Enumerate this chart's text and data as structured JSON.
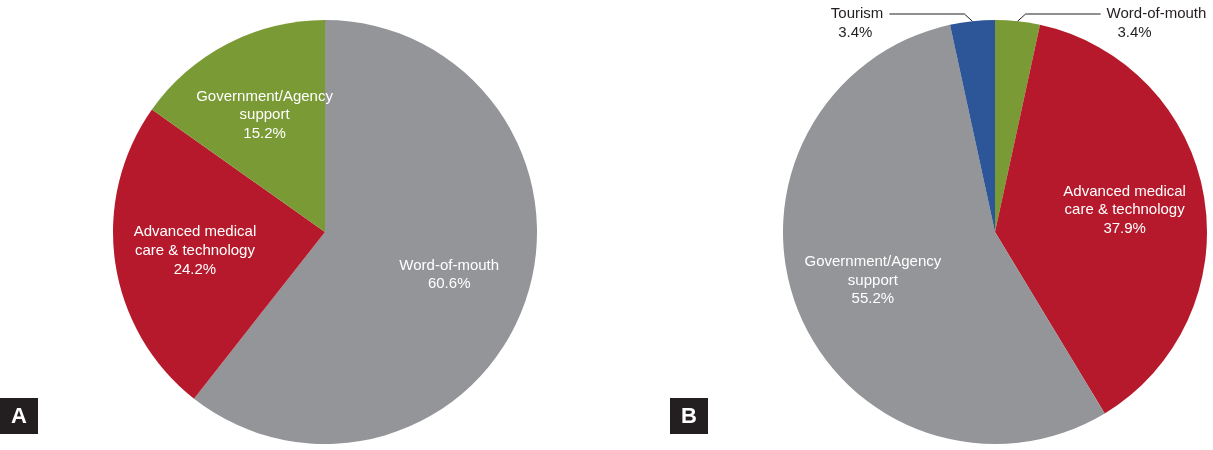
{
  "chart_data": [
    {
      "type": "pie",
      "title": "A",
      "categories": [
        "Word-of-mouth",
        "Advanced medical care & technology",
        "Government/Agency support"
      ],
      "values": [
        60.6,
        24.2,
        15.2
      ],
      "value_labels": [
        "60.6%",
        "24.2%",
        "15.2%"
      ],
      "colors": [
        "#939598",
        "#b5192b",
        "#7a9a35"
      ]
    },
    {
      "type": "pie",
      "title": "B",
      "categories": [
        "Word-of-mouth",
        "Advanced medical care & technology",
        "Government/Agency support",
        "Tourism"
      ],
      "values": [
        3.4,
        37.9,
        55.2,
        3.4
      ],
      "value_labels": [
        "3.4%",
        "37.9%",
        "55.2%",
        "3.4%"
      ],
      "colors": [
        "#7a9a35",
        "#b5192b",
        "#939598",
        "#2c5697"
      ]
    }
  ]
}
